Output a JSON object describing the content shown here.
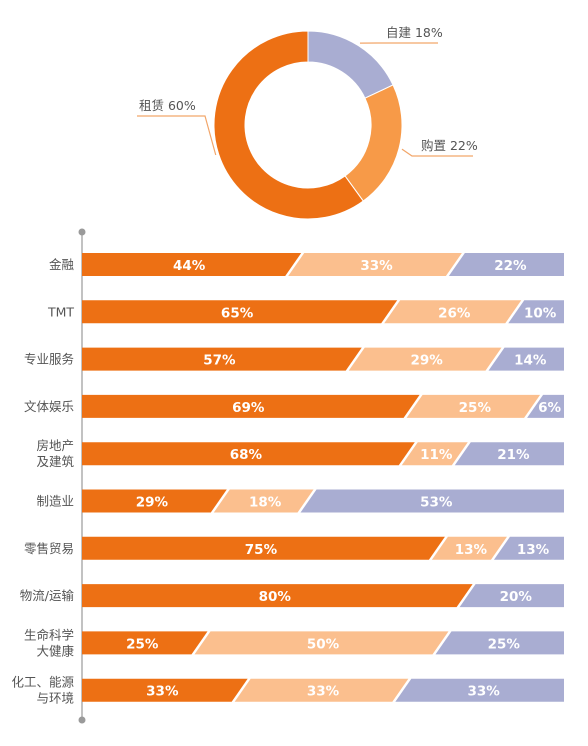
{
  "colors": {
    "rent": "#ED7014",
    "buy": "#F79A48",
    "build": "#A9ADD2",
    "bar_mid": "#FBBF8E",
    "axis": "#9A9A9A",
    "label_text": "#555555",
    "leader": "#F2A66A"
  },
  "chart_data": [
    {
      "type": "pie",
      "style": "donut",
      "slices": [
        {
          "name": "自建",
          "value": 18,
          "label": "自建 18%",
          "color": "#A9ADD2"
        },
        {
          "name": "购置",
          "value": 22,
          "label": "购置 22%",
          "color": "#F79A48"
        },
        {
          "name": "租赁",
          "value": 60,
          "label": "租赁 60%",
          "color": "#ED7014"
        }
      ]
    },
    {
      "type": "bar",
      "orientation": "horizontal",
      "stacked": "percent",
      "categories": [
        [
          "金融"
        ],
        [
          "TMT"
        ],
        [
          "专业服务"
        ],
        [
          "文体娱乐"
        ],
        [
          "房地产",
          "及建筑"
        ],
        [
          "制造业"
        ],
        [
          "零售贸易"
        ],
        [
          "物流/运输"
        ],
        [
          "生命科学",
          "大健康"
        ],
        [
          "化工、能源",
          "与环境"
        ]
      ],
      "series": [
        {
          "color": "#ED7014",
          "values": [
            44,
            65,
            57,
            69,
            68,
            29,
            75,
            80,
            25,
            33
          ],
          "labels": [
            "44%",
            "65%",
            "57%",
            "69%",
            "68%",
            "29%",
            "75%",
            "80%",
            "25%",
            "33%"
          ]
        },
        {
          "color": "#FBBF8E",
          "values": [
            33,
            26,
            29,
            25,
            11,
            18,
            13,
            0,
            50,
            33
          ],
          "labels": [
            "33%",
            "26%",
            "29%",
            "25%",
            "11%",
            "18%",
            "13%",
            "",
            "50%",
            "33%"
          ]
        },
        {
          "color": "#A9ADD2",
          "values": [
            22,
            10,
            14,
            6,
            21,
            53,
            13,
            20,
            25,
            33
          ],
          "labels": [
            "22%",
            "10%",
            "14%",
            "6%",
            "21%",
            "53%",
            "13%",
            "20%",
            "25%",
            "33%"
          ]
        }
      ],
      "grid": false,
      "legend": "none"
    }
  ]
}
